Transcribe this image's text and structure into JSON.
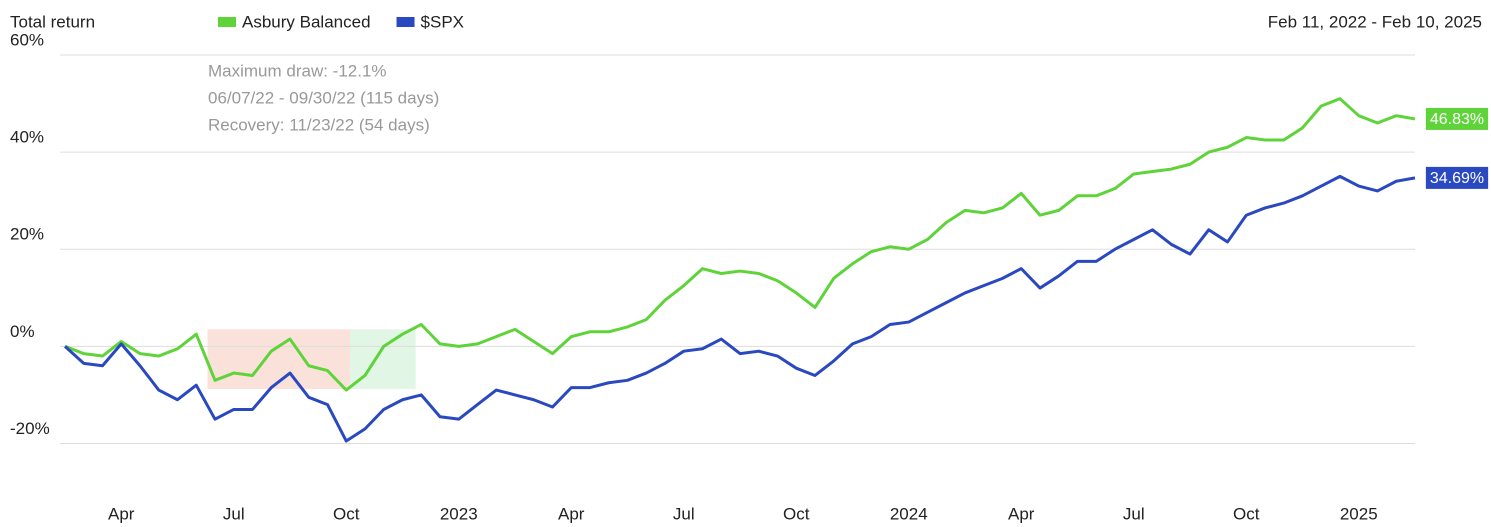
{
  "chart_data": {
    "type": "line",
    "title": "Total return",
    "subtitle": "Feb 11, 2022 - Feb 10, 2025",
    "categories": [
      null,
      null,
      null,
      "Apr",
      null,
      null,
      null,
      null,
      null,
      "Jul",
      null,
      null,
      null,
      null,
      null,
      "Oct",
      null,
      null,
      null,
      null,
      null,
      "2023",
      null,
      null,
      null,
      null,
      null,
      "Apr",
      null,
      null,
      null,
      null,
      null,
      "Jul",
      null,
      null,
      null,
      null,
      null,
      "Oct",
      null,
      null,
      null,
      null,
      null,
      "2024",
      null,
      null,
      null,
      null,
      null,
      "Apr",
      null,
      null,
      null,
      null,
      null,
      "Jul",
      null,
      null,
      null,
      null,
      null,
      "Oct",
      null,
      null,
      null,
      null,
      null,
      "2025",
      null,
      null,
      null
    ],
    "series": [
      {
        "name": "Asbury Balanced",
        "color": "#5fd33a",
        "end_label": "46.83%",
        "values": [
          0,
          -1.5,
          -2,
          1,
          -1.5,
          -2,
          -0.5,
          2.5,
          -7,
          -5.5,
          -6,
          -1,
          1.5,
          -4,
          -5,
          -9,
          -6,
          0,
          2.5,
          4.5,
          0.5,
          0,
          0.5,
          2,
          3.5,
          1,
          -1.5,
          2,
          3,
          3,
          4,
          5.5,
          9.5,
          12.5,
          16,
          15,
          15.5,
          15,
          13.5,
          11,
          8,
          14,
          17,
          19.5,
          20.5,
          20,
          22,
          25.5,
          28,
          27.5,
          28.5,
          31.5,
          27,
          28,
          31,
          31,
          32.5,
          35.5,
          36,
          36.5,
          37.5,
          40,
          41,
          43,
          42.5,
          42.5,
          45,
          49.5,
          51,
          47.5,
          46,
          47.5,
          46.83
        ]
      },
      {
        "name": "$SPX",
        "color": "#2a49c0",
        "end_label": "34.69%",
        "values": [
          0,
          -3.5,
          -4,
          0.5,
          -4,
          -9,
          -11,
          -8,
          -15,
          -13,
          -13,
          -8.5,
          -5.5,
          -10.5,
          -12,
          -19.5,
          -17,
          -13,
          -11,
          -10,
          -14.5,
          -15,
          -12,
          -9,
          -10,
          -11,
          -12.5,
          -8.5,
          -8.5,
          -7.5,
          -7,
          -5.5,
          -3.5,
          -1,
          -0.5,
          1.5,
          -1.5,
          -1,
          -2,
          -4.5,
          -6,
          -3,
          0.5,
          2,
          4.5,
          5,
          7,
          9,
          11,
          12.5,
          14,
          16,
          12,
          14.5,
          17.5,
          17.5,
          20,
          22,
          24,
          21,
          19,
          24,
          21.5,
          27,
          28.5,
          29.5,
          31,
          33,
          35,
          33,
          32,
          34,
          34.69
        ]
      }
    ],
    "ylim": [
      -30,
      60
    ],
    "yticks": [
      {
        "value": -20,
        "label": "-20%"
      },
      {
        "value": 0,
        "label": "0%"
      },
      {
        "value": 20,
        "label": "20%"
      },
      {
        "value": 40,
        "label": "40%"
      },
      {
        "value": 60,
        "label": "60%"
      }
    ],
    "grid": true,
    "shaded_regions": [
      {
        "x": [
          7.6,
          15.2
        ],
        "y": [
          3.5,
          -8.8
        ],
        "color": "#f9ddd3"
      },
      {
        "x": [
          15.2,
          18.7
        ],
        "y": [
          3.5,
          -8.8
        ],
        "color": "#dcf5df"
      }
    ],
    "annotations": [
      "Maximum draw: -12.1%",
      "06/07/22 - 09/30/22 (115 days)",
      "Recovery: 11/23/22 (54 days)"
    ]
  }
}
